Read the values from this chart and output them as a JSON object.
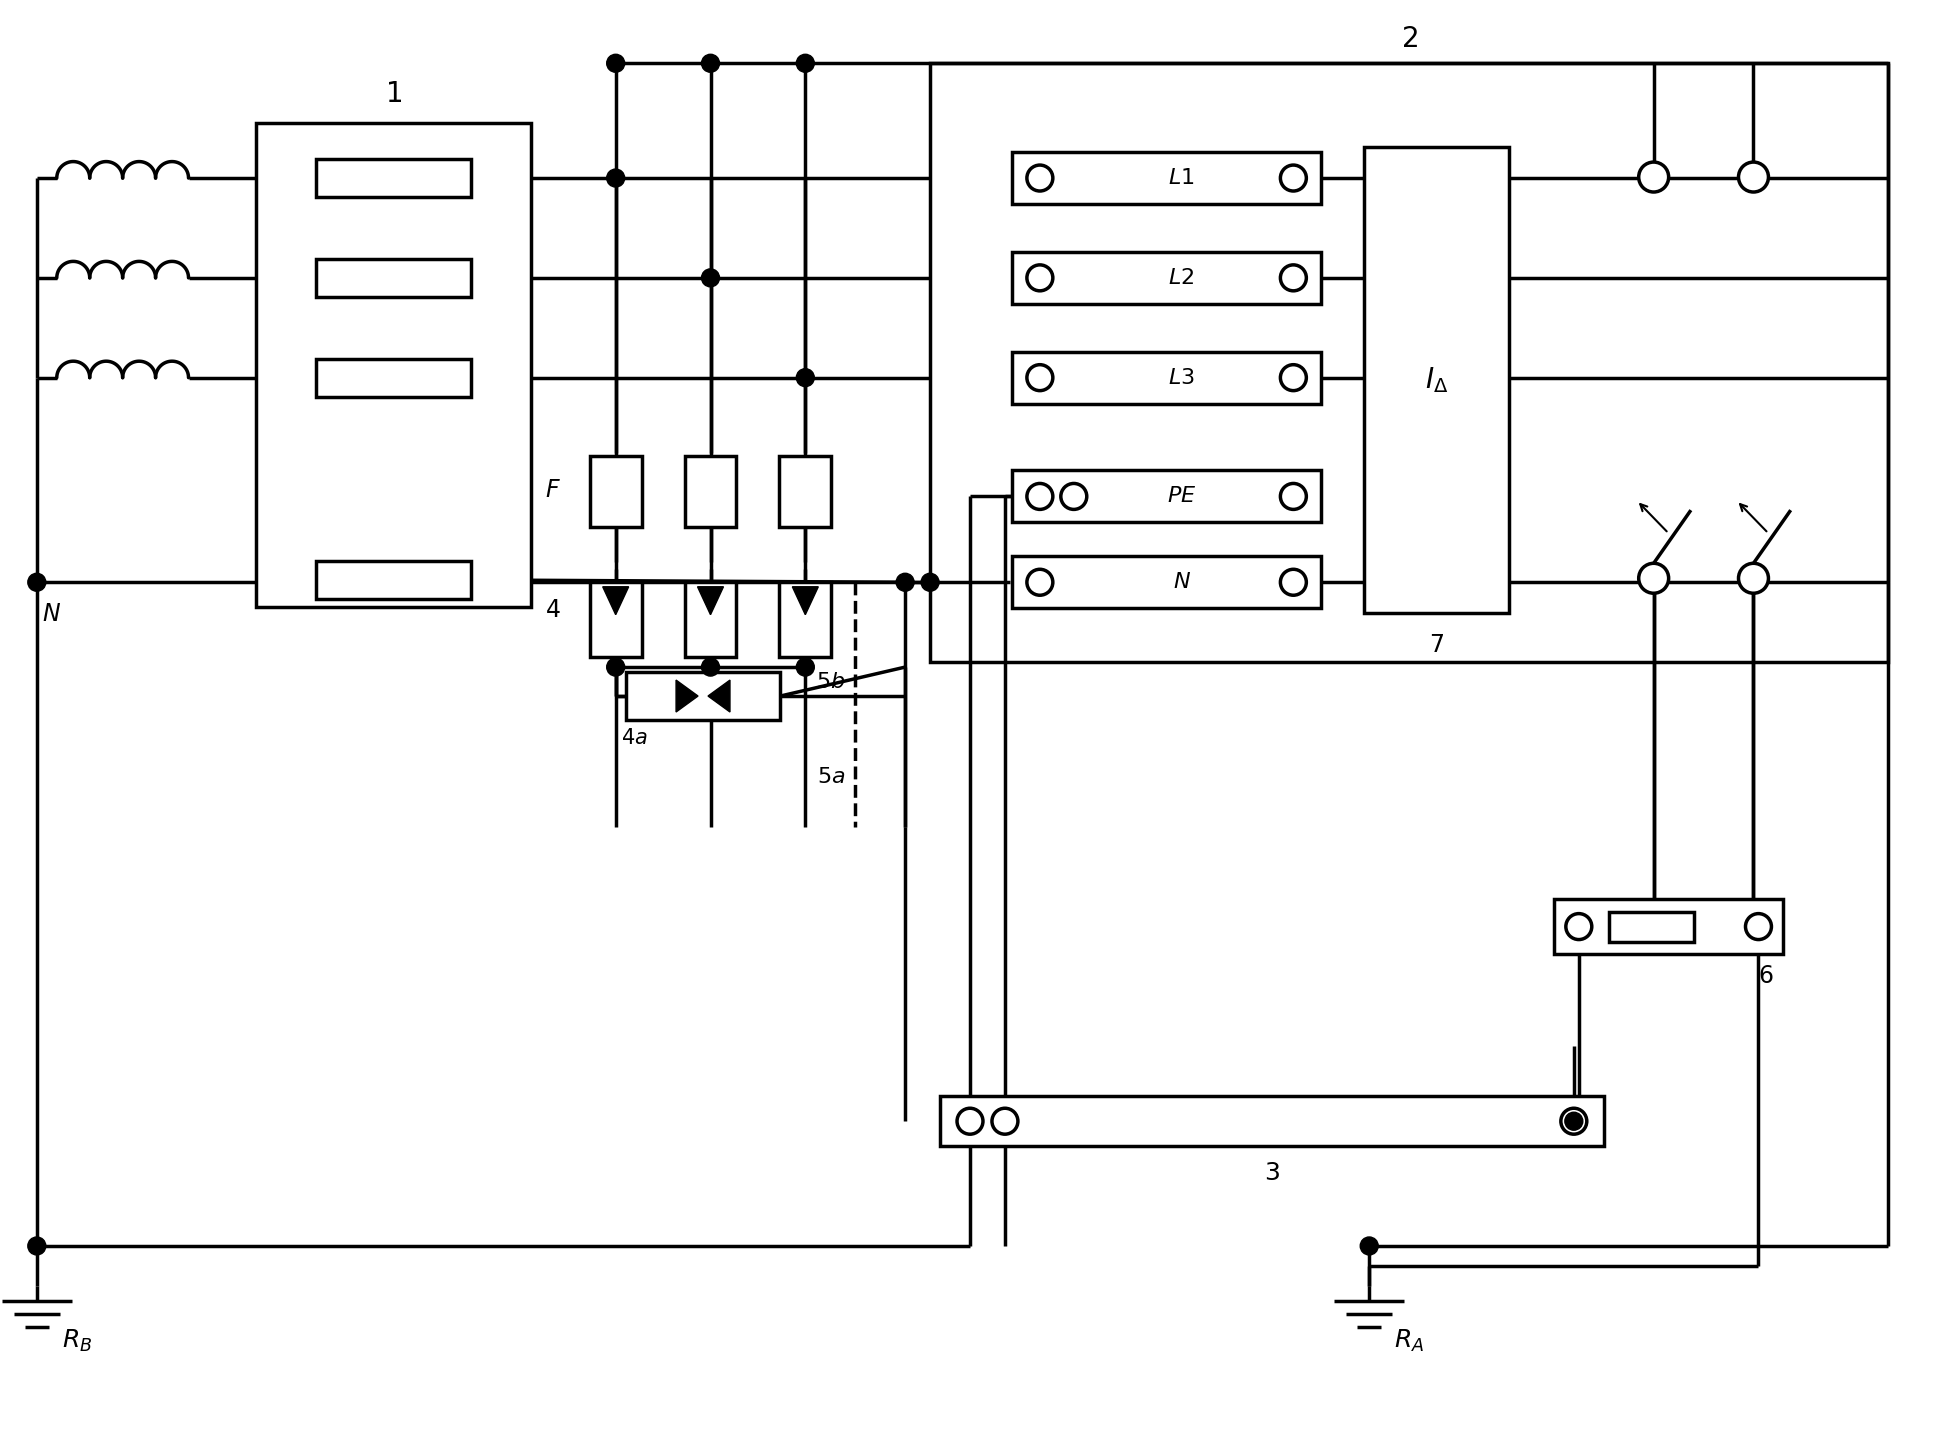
{
  "figsize": [
    19.39,
    14.32
  ],
  "dpi": 100,
  "bg_color": "white",
  "lc": "black",
  "lw": 2.5,
  "lw_thin": 1.5
}
